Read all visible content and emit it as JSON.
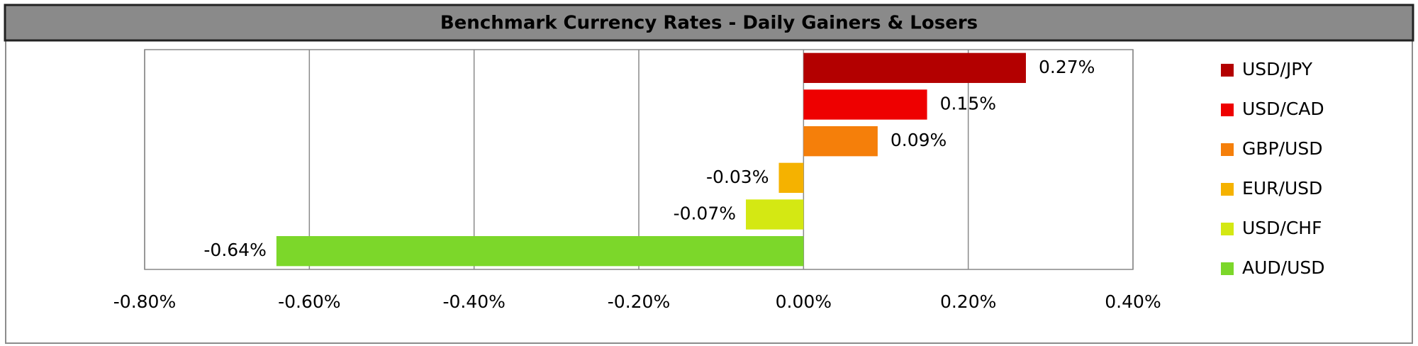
{
  "chart_data": {
    "type": "hbar",
    "title": "Benchmark Currency Rates - Daily Gainers & Losers",
    "categories": [
      "USD/JPY",
      "USD/CAD",
      "GBP/USD",
      "EUR/USD",
      "USD/CHF",
      "AUD/USD"
    ],
    "values": [
      0.27,
      0.15,
      0.09,
      -0.03,
      -0.07,
      -0.64
    ],
    "value_labels": [
      "0.27%",
      "0.15%",
      "0.09%",
      "-0.03%",
      "-0.07%",
      "-0.64%"
    ],
    "colors": [
      "#b30000",
      "#ee0000",
      "#f57f0a",
      "#f5b200",
      "#d4e813",
      "#7cd72a"
    ],
    "xlim": [
      -0.8,
      0.4
    ],
    "xticks": [
      {
        "value": -0.8,
        "label": "-0.80%"
      },
      {
        "value": -0.6,
        "label": "-0.60%"
      },
      {
        "value": -0.4,
        "label": "-0.40%"
      },
      {
        "value": -0.2,
        "label": "-0.20%"
      },
      {
        "value": 0,
        "label": "0.00%"
      },
      {
        "value": 0.2,
        "label": "0.20%"
      },
      {
        "value": 0.4,
        "label": "0.40%"
      }
    ],
    "grid": true,
    "legend": "right"
  }
}
